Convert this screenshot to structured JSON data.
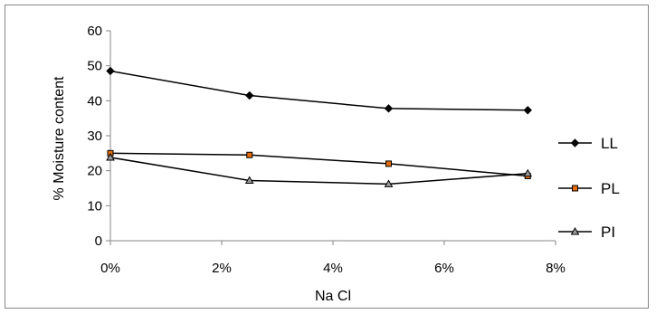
{
  "chart_data": {
    "type": "line",
    "x": [
      0,
      2.5,
      5,
      7.5
    ],
    "xlim": [
      0,
      8
    ],
    "xticks": [
      0,
      2,
      4,
      6,
      8
    ],
    "xtick_labels": [
      "0%",
      "2%",
      "4%",
      "6%",
      "8%"
    ],
    "ylim": [
      0,
      60
    ],
    "yticks": [
      0,
      10,
      20,
      30,
      40,
      50,
      60
    ],
    "ytick_labels": [
      "0",
      "10",
      "20",
      "30",
      "40",
      "50",
      "60"
    ],
    "xlabel": "Na Cl",
    "ylabel": "% Moisture content",
    "grid": false,
    "legend": "right",
    "series": [
      {
        "name": "LL",
        "values": [
          48.5,
          41.5,
          37.8,
          37.3
        ],
        "marker": "diamond",
        "color": "#000000"
      },
      {
        "name": "PL",
        "values": [
          25.0,
          24.5,
          22.0,
          18.5
        ],
        "marker": "square",
        "color": "#E46C0A"
      },
      {
        "name": "PI",
        "values": [
          23.8,
          17.2,
          16.2,
          19.2
        ],
        "marker": "triangle",
        "color": "#808080"
      }
    ]
  }
}
